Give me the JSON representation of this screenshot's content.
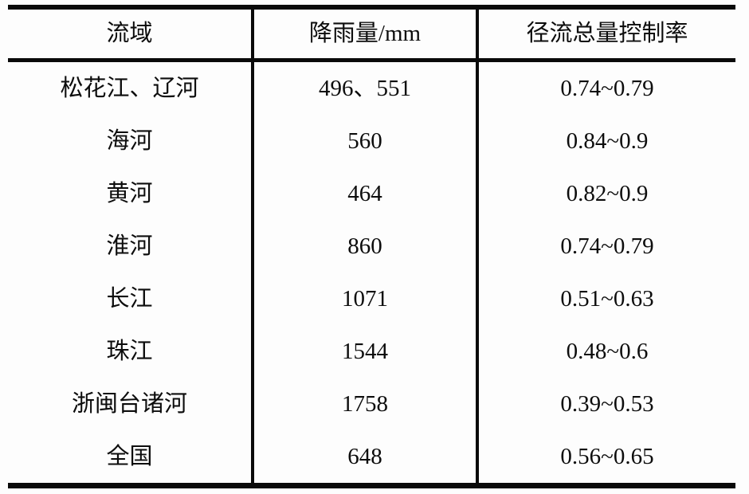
{
  "colors": {
    "background": "#fdfdfd",
    "border": "#0a0a0a",
    "text": "#0d0d0d"
  },
  "chart_data": {
    "type": "table",
    "title": "",
    "columns": [
      "流域",
      "降雨量/mm",
      "径流总量控制率"
    ],
    "rows": [
      [
        "松花江、辽河",
        "496、551",
        "0.74~0.79"
      ],
      [
        "海河",
        "560",
        "0.84~0.9"
      ],
      [
        "黄河",
        "464",
        "0.82~0.9"
      ],
      [
        "淮河",
        "860",
        "0.74~0.79"
      ],
      [
        "长江",
        "1071",
        "0.51~0.63"
      ],
      [
        "珠江",
        "1544",
        "0.48~0.6"
      ],
      [
        "浙闽台诸河",
        "1758",
        "0.39~0.53"
      ],
      [
        "全国",
        "648",
        "0.56~0.65"
      ]
    ],
    "layout": {
      "grid": "vertical-dividers-only",
      "outer_borders": "top-and-bottom-thick",
      "row_separators": "header-only",
      "cell_alignment": "center"
    }
  }
}
